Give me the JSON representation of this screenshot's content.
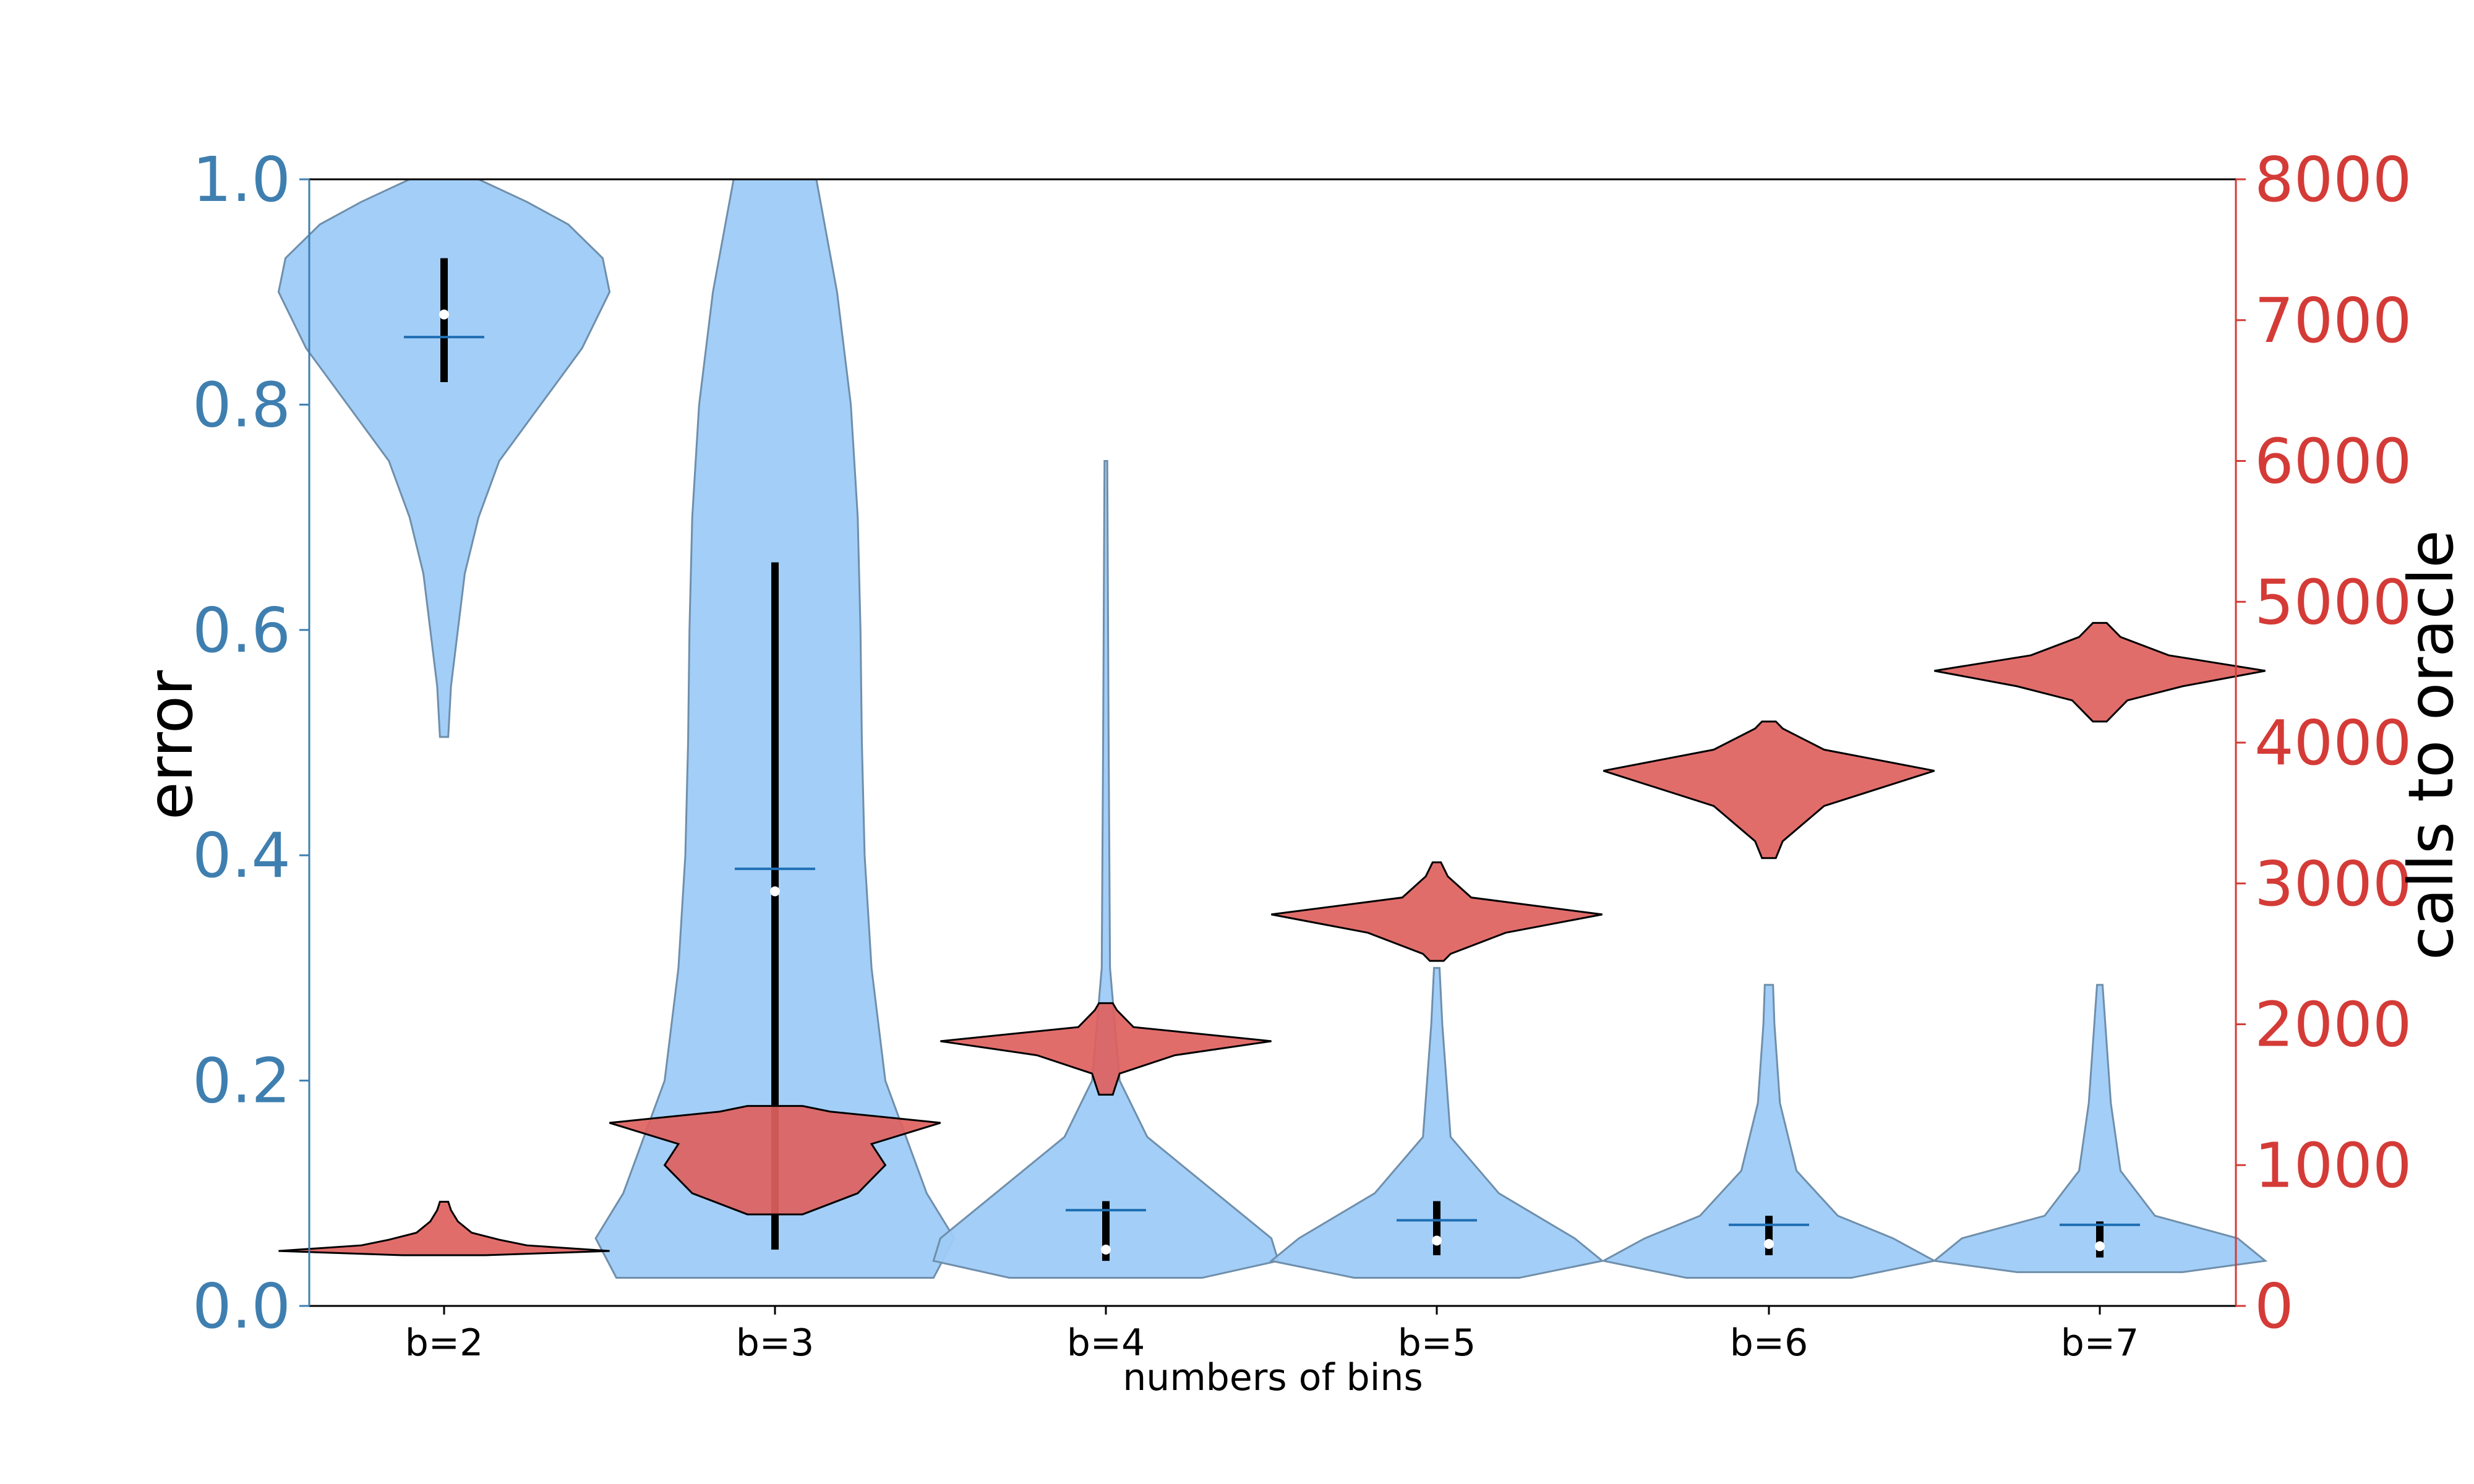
{
  "chart_data": {
    "type": "violin",
    "xlabel": "numbers of bins",
    "ylabel_left": "error",
    "ylabel_right": "calls to oracle",
    "categories": [
      "b=2",
      "b=3",
      "b=4",
      "b=5",
      "b=6",
      "b=7"
    ],
    "ylim_left": [
      0,
      1.0
    ],
    "ylim_right": [
      0,
      8000
    ],
    "yticks_left": [
      "0.0",
      "0.2",
      "0.4",
      "0.6",
      "0.8",
      "1.0"
    ],
    "yticks_right": [
      "0",
      "1000",
      "2000",
      "3000",
      "4000",
      "5000",
      "6000",
      "7000",
      "8000"
    ],
    "colors": {
      "error": "#9ecbf7",
      "error_axis": "#3f7fb0",
      "calls": "#de615e",
      "calls_axis": "#d43b37"
    },
    "series": [
      {
        "name": "error",
        "axis": "left",
        "violins": [
          {
            "profile": [
              [
                0.505,
                0.003
              ],
              [
                0.55,
                0.005
              ],
              [
                0.6,
                0.01
              ],
              [
                0.65,
                0.015
              ],
              [
                0.7,
                0.025
              ],
              [
                0.75,
                0.04
              ],
              [
                0.8,
                0.07
              ],
              [
                0.85,
                0.1
              ],
              [
                0.9,
                0.12
              ],
              [
                0.93,
                0.115
              ],
              [
                0.96,
                0.09
              ],
              [
                0.98,
                0.06
              ],
              [
                1.0,
                0.025
              ]
            ],
            "mean": 0.86,
            "median": 0.88,
            "q1": 0.82,
            "q3": 0.93
          },
          {
            "profile": [
              [
                0.025,
                0.115
              ],
              [
                0.06,
                0.13
              ],
              [
                0.1,
                0.11
              ],
              [
                0.15,
                0.095
              ],
              [
                0.2,
                0.08
              ],
              [
                0.3,
                0.07
              ],
              [
                0.4,
                0.065
              ],
              [
                0.5,
                0.063
              ],
              [
                0.6,
                0.062
              ],
              [
                0.7,
                0.06
              ],
              [
                0.8,
                0.055
              ],
              [
                0.9,
                0.045
              ],
              [
                1.0,
                0.03
              ]
            ],
            "mean": 0.388,
            "median": 0.368,
            "q1": 0.05,
            "q3": 0.66
          },
          {
            "profile": [
              [
                0.025,
                0.07
              ],
              [
                0.04,
                0.125
              ],
              [
                0.06,
                0.12
              ],
              [
                0.1,
                0.08
              ],
              [
                0.15,
                0.03
              ],
              [
                0.2,
                0.01
              ],
              [
                0.3,
                0.003
              ],
              [
                0.5,
                0.002
              ],
              [
                0.75,
                0.001
              ]
            ],
            "mean": 0.085,
            "median": 0.05,
            "q1": 0.04,
            "q3": 0.093
          },
          {
            "profile": [
              [
                0.025,
                0.06
              ],
              [
                0.04,
                0.12
              ],
              [
                0.06,
                0.1
              ],
              [
                0.1,
                0.045
              ],
              [
                0.15,
                0.01
              ],
              [
                0.2,
                0.007
              ],
              [
                0.25,
                0.004
              ],
              [
                0.3,
                0.002
              ]
            ],
            "mean": 0.076,
            "median": 0.058,
            "q1": 0.045,
            "q3": 0.093
          },
          {
            "profile": [
              [
                0.025,
                0.06
              ],
              [
                0.04,
                0.12
              ],
              [
                0.06,
                0.09
              ],
              [
                0.08,
                0.05
              ],
              [
                0.12,
                0.02
              ],
              [
                0.18,
                0.008
              ],
              [
                0.25,
                0.004
              ],
              [
                0.285,
                0.003
              ]
            ],
            "mean": 0.072,
            "median": 0.055,
            "q1": 0.045,
            "q3": 0.08
          },
          {
            "profile": [
              [
                0.03,
                0.06
              ],
              [
                0.04,
                0.12
              ],
              [
                0.06,
                0.1
              ],
              [
                0.08,
                0.04
              ],
              [
                0.12,
                0.015
              ],
              [
                0.18,
                0.008
              ],
              [
                0.25,
                0.004
              ],
              [
                0.285,
                0.002
              ]
            ],
            "mean": 0.072,
            "median": 0.053,
            "q1": 0.043,
            "q3": 0.075
          }
        ]
      },
      {
        "name": "calls to oracle",
        "axis": "right",
        "violins": [
          {
            "profile": [
              [
                360,
                0.03
              ],
              [
                390,
                0.12
              ],
              [
                430,
                0.06
              ],
              [
                470,
                0.04
              ],
              [
                520,
                0.02
              ],
              [
                600,
                0.01
              ],
              [
                680,
                0.005
              ],
              [
                740,
                0.003
              ]
            ],
            "mean": 400
          },
          {
            "profile": [
              [
                650,
                0.02
              ],
              [
                800,
                0.06
              ],
              [
                1000,
                0.08
              ],
              [
                1150,
                0.07
              ],
              [
                1300,
                0.12
              ],
              [
                1380,
                0.04
              ],
              [
                1420,
                0.02
              ]
            ],
            "mean": 1050
          },
          {
            "profile": [
              [
                1500,
                0.005
              ],
              [
                1650,
                0.01
              ],
              [
                1780,
                0.05
              ],
              [
                1880,
                0.12
              ],
              [
                1980,
                0.02
              ],
              [
                2100,
                0.008
              ],
              [
                2150,
                0.005
              ]
            ],
            "mean": 1870
          },
          {
            "profile": [
              [
                2450,
                0.005
              ],
              [
                2500,
                0.01
              ],
              [
                2650,
                0.05
              ],
              [
                2780,
                0.12
              ],
              [
                2900,
                0.025
              ],
              [
                3050,
                0.008
              ],
              [
                3150,
                0.003
              ]
            ],
            "mean": 2760
          },
          {
            "profile": [
              [
                3180,
                0.005
              ],
              [
                3300,
                0.01
              ],
              [
                3550,
                0.04
              ],
              [
                3800,
                0.12
              ],
              [
                3950,
                0.04
              ],
              [
                4100,
                0.01
              ],
              [
                4150,
                0.005
              ]
            ],
            "mean": 3800
          },
          {
            "profile": [
              [
                4150,
                0.005
              ],
              [
                4300,
                0.02
              ],
              [
                4400,
                0.06
              ],
              [
                4510,
                0.12
              ],
              [
                4620,
                0.05
              ],
              [
                4750,
                0.015
              ],
              [
                4850,
                0.005
              ]
            ],
            "mean": 4510
          }
        ]
      }
    ]
  }
}
